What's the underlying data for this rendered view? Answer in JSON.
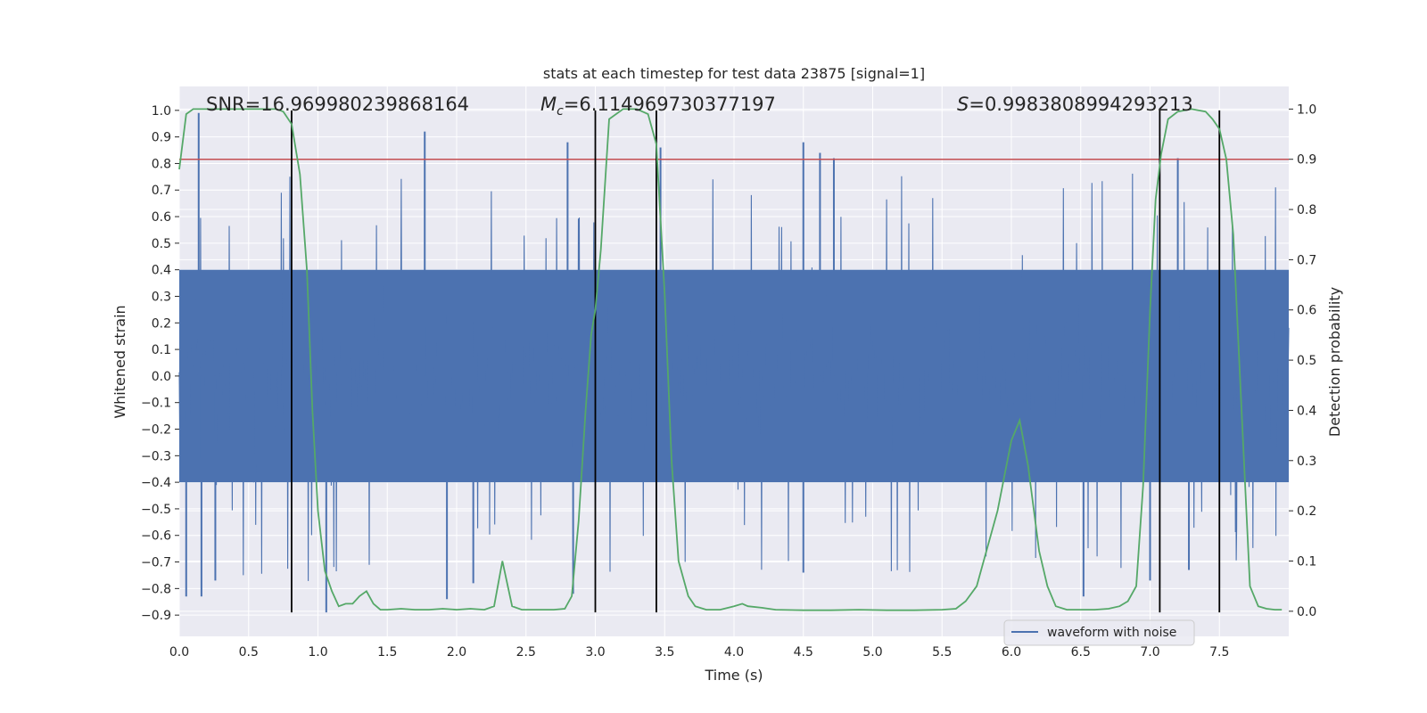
{
  "chart_data": {
    "type": "line",
    "title": "stats at each timestep for test data 23875 [signal=1]",
    "xlabel": "Time (s)",
    "ylabel": "Whitened strain",
    "y2label": "Detection probability",
    "xlim": [
      0.0,
      8.0
    ],
    "ylim": [
      -0.98,
      1.09
    ],
    "y2lim": [
      -0.05,
      1.045
    ],
    "x_ticks": [
      0.0,
      0.5,
      1.0,
      1.5,
      2.0,
      2.5,
      3.0,
      3.5,
      4.0,
      4.5,
      5.0,
      5.5,
      6.0,
      6.5,
      7.0,
      7.5
    ],
    "x_tick_labels": [
      "0.0",
      "0.5",
      "1.0",
      "1.5",
      "2.0",
      "2.5",
      "3.0",
      "3.5",
      "4.0",
      "4.5",
      "5.0",
      "5.5",
      "6.0",
      "6.5",
      "7.0",
      "7.5"
    ],
    "y_ticks": [
      1.0,
      0.9,
      0.8,
      0.7,
      0.6,
      0.5,
      0.4,
      0.3,
      0.2,
      0.1,
      0.0,
      -0.1,
      -0.2,
      -0.3,
      -0.4,
      -0.5,
      -0.6,
      -0.7,
      -0.8,
      -0.9
    ],
    "y_tick_labels": [
      "1.0",
      "0.9",
      "0.8",
      "0.7",
      "0.6",
      "0.5",
      "0.4",
      "0.3",
      "0.2",
      "0.1",
      "0.0",
      "−0.1",
      "−0.2",
      "−0.3",
      "−0.4",
      "−0.5",
      "−0.6",
      "−0.7",
      "−0.8",
      "−0.9"
    ],
    "y2_ticks": [
      1.0,
      0.9,
      0.8,
      0.7,
      0.6,
      0.5,
      0.4,
      0.3,
      0.2,
      0.1,
      0.0
    ],
    "y2_tick_labels": [
      "1.0",
      "0.9",
      "0.8",
      "0.7",
      "0.6",
      "0.5",
      "0.4",
      "0.3",
      "0.2",
      "0.1",
      "0.0"
    ],
    "stats": {
      "snr_label": "SNR=16.969980239868164",
      "mc_symbol": "M",
      "mc_subscript": "c",
      "mc_value": "=6.114969730377197",
      "s_symbol": "S",
      "s_value": "=0.9983808994293213"
    },
    "threshold": {
      "y2_value": 0.9,
      "color": "#c44e52"
    },
    "vertical_lines": {
      "x": [
        0.81,
        3.0,
        3.44,
        7.07,
        7.5
      ],
      "y_range": [
        -0.89,
        1.0
      ],
      "color": "#000000"
    },
    "waveform": {
      "name": "waveform with noise",
      "color": "#4c72b0",
      "approx_envelope": {
        "positive_typical": 0.45,
        "negative_typical": -0.45,
        "max": 1.0,
        "min": -0.89
      },
      "spikes": [
        {
          "x": 0.14,
          "y": 0.99
        },
        {
          "x": 0.16,
          "y": -0.83
        },
        {
          "x": 0.26,
          "y": -0.77
        },
        {
          "x": 0.05,
          "y": -0.83
        },
        {
          "x": 1.06,
          "y": -0.89
        },
        {
          "x": 1.77,
          "y": 0.92
        },
        {
          "x": 1.93,
          "y": -0.84
        },
        {
          "x": 2.12,
          "y": -0.78
        },
        {
          "x": 2.8,
          "y": 0.88
        },
        {
          "x": 2.84,
          "y": -0.82
        },
        {
          "x": 3.47,
          "y": 0.86
        },
        {
          "x": 4.5,
          "y": 0.88
        },
        {
          "x": 4.62,
          "y": 0.84
        },
        {
          "x": 4.72,
          "y": 0.82
        },
        {
          "x": 4.5,
          "y": -0.74
        },
        {
          "x": 6.52,
          "y": -0.83
        },
        {
          "x": 7.2,
          "y": 0.82
        },
        {
          "x": 7.0,
          "y": -0.77
        },
        {
          "x": 7.28,
          "y": -0.73
        }
      ]
    },
    "probability_series": {
      "name": "detection probability",
      "color": "#55a868",
      "axis": "y2",
      "x": [
        0.0,
        0.05,
        0.1,
        0.2,
        0.4,
        0.6,
        0.7,
        0.75,
        0.81,
        0.87,
        0.92,
        0.96,
        1.0,
        1.05,
        1.1,
        1.15,
        1.2,
        1.25,
        1.3,
        1.35,
        1.4,
        1.45,
        1.5,
        1.6,
        1.7,
        1.8,
        1.9,
        2.0,
        2.1,
        2.2,
        2.27,
        2.33,
        2.4,
        2.47,
        2.53,
        2.6,
        2.7,
        2.78,
        2.83,
        2.88,
        2.93,
        2.97,
        3.0,
        3.04,
        3.1,
        3.2,
        3.3,
        3.38,
        3.44,
        3.5,
        3.55,
        3.6,
        3.67,
        3.72,
        3.8,
        3.9,
        4.0,
        4.06,
        4.1,
        4.2,
        4.3,
        4.5,
        4.7,
        4.9,
        5.1,
        5.3,
        5.5,
        5.6,
        5.67,
        5.75,
        5.82,
        5.9,
        6.0,
        6.06,
        6.12,
        6.2,
        6.26,
        6.32,
        6.4,
        6.5,
        6.6,
        6.7,
        6.78,
        6.84,
        6.9,
        6.95,
        7.0,
        7.04,
        7.08,
        7.13,
        7.2,
        7.3,
        7.4,
        7.45,
        7.5,
        7.55,
        7.6,
        7.66,
        7.72,
        7.78,
        7.84,
        7.9,
        7.95
      ],
      "y": [
        0.88,
        0.99,
        1.0,
        1.0,
        1.0,
        1.0,
        1.0,
        0.995,
        0.97,
        0.87,
        0.68,
        0.4,
        0.2,
        0.08,
        0.04,
        0.01,
        0.015,
        0.015,
        0.03,
        0.04,
        0.015,
        0.003,
        0.003,
        0.005,
        0.003,
        0.003,
        0.005,
        0.003,
        0.005,
        0.003,
        0.01,
        0.1,
        0.01,
        0.003,
        0.003,
        0.003,
        0.003,
        0.005,
        0.03,
        0.18,
        0.4,
        0.55,
        0.6,
        0.72,
        0.98,
        1.0,
        1.0,
        0.99,
        0.93,
        0.63,
        0.3,
        0.1,
        0.03,
        0.01,
        0.003,
        0.003,
        0.01,
        0.015,
        0.01,
        0.007,
        0.003,
        0.002,
        0.002,
        0.003,
        0.002,
        0.002,
        0.003,
        0.005,
        0.02,
        0.05,
        0.12,
        0.2,
        0.34,
        0.38,
        0.29,
        0.12,
        0.05,
        0.01,
        0.003,
        0.003,
        0.003,
        0.005,
        0.01,
        0.02,
        0.05,
        0.25,
        0.6,
        0.82,
        0.91,
        0.98,
        0.995,
        1.0,
        0.995,
        0.98,
        0.96,
        0.9,
        0.75,
        0.4,
        0.05,
        0.01,
        0.005,
        0.003,
        0.003
      ]
    },
    "grid": true,
    "legend": {
      "position": "bottom-right",
      "entries": [
        "waveform with noise"
      ]
    }
  }
}
